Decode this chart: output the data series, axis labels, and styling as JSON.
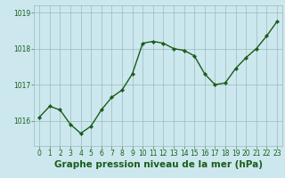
{
  "hours": [
    0,
    1,
    2,
    3,
    4,
    5,
    6,
    7,
    8,
    9,
    10,
    11,
    12,
    13,
    14,
    15,
    16,
    17,
    18,
    19,
    20,
    21,
    22,
    23
  ],
  "pressure": [
    1016.1,
    1016.4,
    1016.3,
    1015.9,
    1015.65,
    1015.85,
    1016.3,
    1016.65,
    1016.85,
    1017.3,
    1018.15,
    1018.2,
    1018.15,
    1018.0,
    1017.95,
    1017.8,
    1017.3,
    1017.0,
    1017.05,
    1017.45,
    1017.75,
    1018.0,
    1018.35,
    1018.75
  ],
  "line_color": "#1a5c1a",
  "marker": "D",
  "marker_size": 2.2,
  "bg_color": "#cce8ee",
  "grid_color": "#99bbbb",
  "xlabel": "Graphe pression niveau de la mer (hPa)",
  "xlabel_fontsize": 7.5,
  "xlabel_color": "#1a5c1a",
  "ylabel_ticks": [
    1016,
    1017,
    1018,
    1019
  ],
  "ylim": [
    1015.3,
    1019.2
  ],
  "xlim": [
    -0.5,
    23.5
  ],
  "xtick_labels": [
    "0",
    "1",
    "2",
    "3",
    "4",
    "5",
    "6",
    "7",
    "8",
    "9",
    "10",
    "11",
    "12",
    "13",
    "14",
    "15",
    "16",
    "17",
    "18",
    "19",
    "20",
    "21",
    "22",
    "23"
  ],
  "tick_fontsize": 5.5,
  "tick_color": "#1a5c1a",
  "line_width": 1.0
}
